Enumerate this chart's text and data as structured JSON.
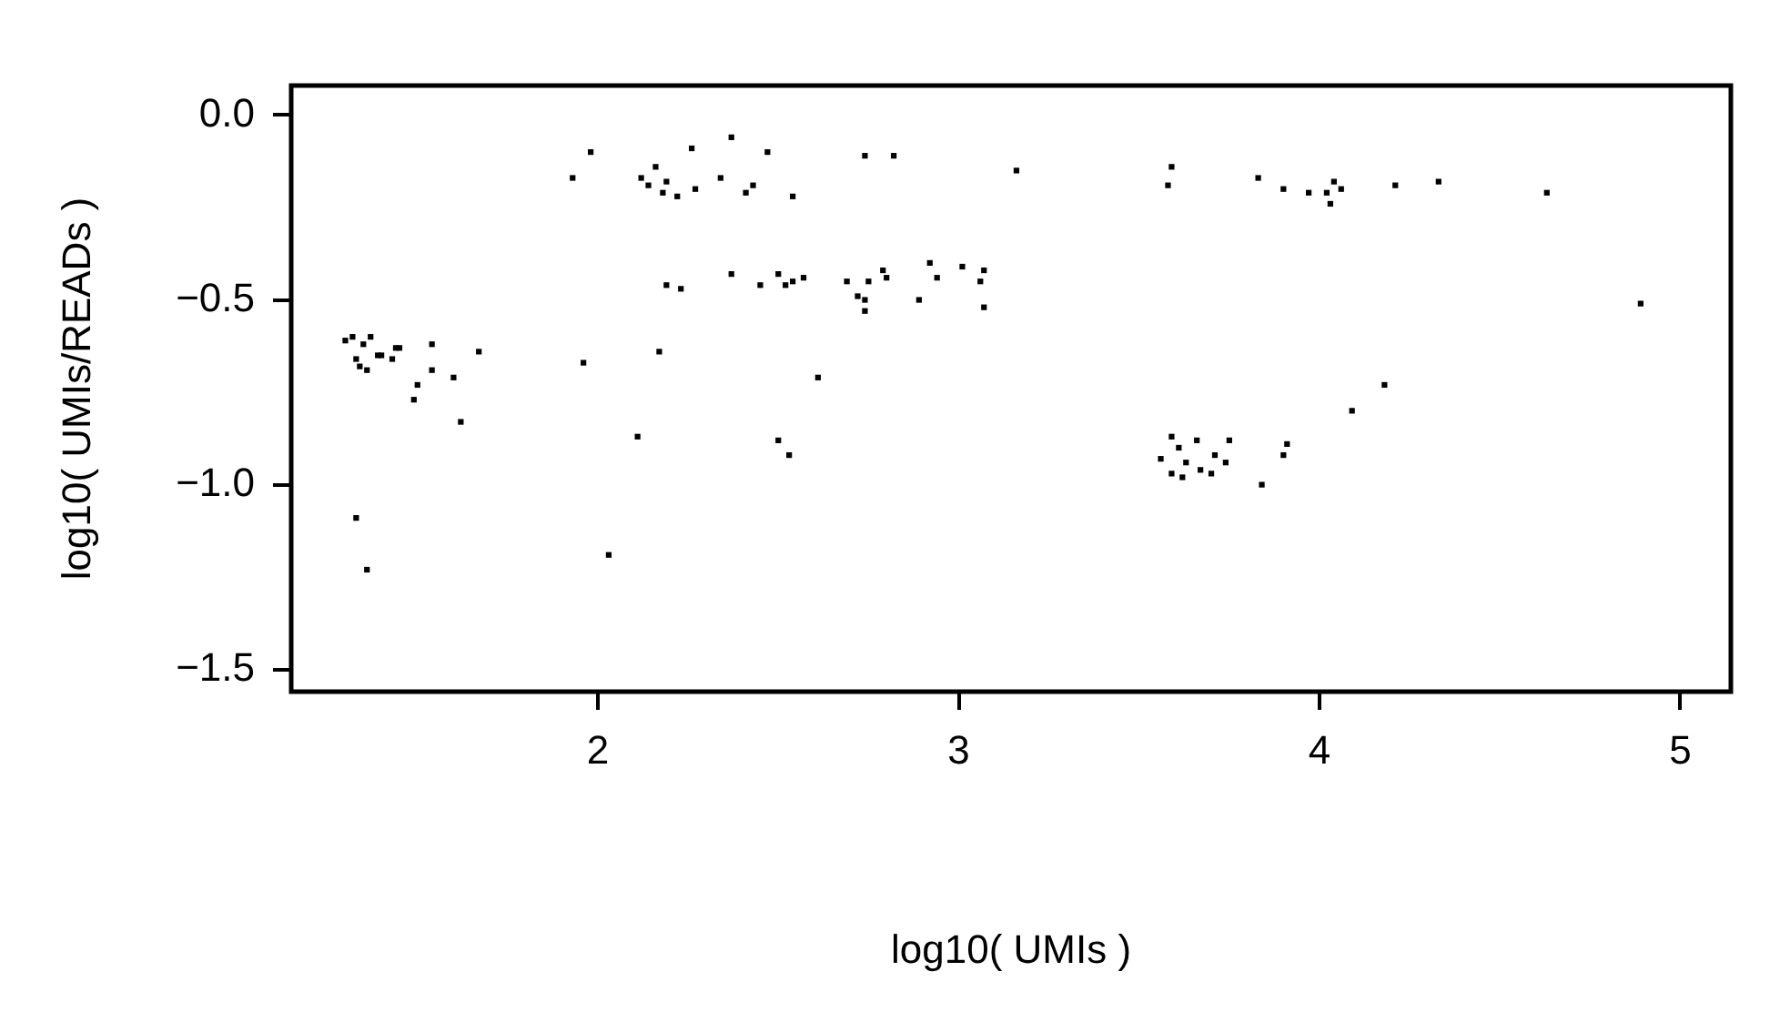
{
  "chart_data": {
    "type": "scatter",
    "xlabel": "log10( UMIs )",
    "ylabel": "log10( UMIs/READs )",
    "marker": "square",
    "grid": false,
    "legend": false,
    "xlim": [
      1.15,
      5.14
    ],
    "ylim": [
      -1.56,
      0.08
    ],
    "xticks": [
      2,
      3,
      4,
      5
    ],
    "yticks": [
      {
        "value": -1.5,
        "label": "−1.5"
      },
      {
        "value": -1,
        "label": "−1.0"
      },
      {
        "value": -0.5,
        "label": "−0.5"
      },
      {
        "value": 0,
        "label": "0.0"
      }
    ],
    "series": [
      {
        "color": "#000000",
        "x": [
          1.3,
          1.32,
          1.37,
          1.35,
          1.39,
          1.33,
          1.34,
          1.36,
          1.4,
          1.43,
          1.44,
          1.45,
          1.54,
          1.67,
          1.54,
          1.6,
          1.5,
          1.49,
          1.62,
          1.33,
          1.36,
          1.96,
          2.17,
          2.11,
          2.5,
          2.53,
          2.03,
          1.93,
          1.98,
          2.12,
          2.14,
          2.16,
          2.19,
          2.18,
          2.22,
          2.26,
          2.27,
          2.34,
          2.37,
          2.41,
          2.43,
          2.47,
          2.54,
          2.19,
          2.23,
          2.37,
          2.45,
          2.5,
          2.52,
          2.54,
          2.74,
          2.82,
          3.16,
          3.59,
          3.58,
          2.57,
          2.69,
          2.72,
          2.74,
          2.74,
          2.75,
          2.79,
          2.8,
          2.89,
          2.92,
          2.94,
          3.01,
          3.07,
          3.06,
          3.07,
          2.61,
          3.83,
          3.9,
          3.97,
          4.02,
          4.04,
          4.06,
          4.03,
          4.21,
          4.33,
          4.63,
          4.89,
          4.18,
          4.09,
          3.59,
          3.61,
          3.66,
          3.75,
          3.56,
          3.63,
          3.71,
          3.74,
          3.59,
          3.62,
          3.67,
          3.7,
          3.91,
          3.9,
          3.84
        ],
        "values": [
          -0.61,
          -0.6,
          -0.6,
          -0.62,
          -0.65,
          -0.66,
          -0.68,
          -0.69,
          -0.65,
          -0.66,
          -0.63,
          -0.63,
          -0.62,
          -0.64,
          -0.69,
          -0.71,
          -0.73,
          -0.77,
          -0.83,
          -1.09,
          -1.23,
          -0.67,
          -0.64,
          -0.87,
          -0.88,
          -0.92,
          -1.19,
          -0.17,
          -0.1,
          -0.17,
          -0.19,
          -0.14,
          -0.18,
          -0.21,
          -0.22,
          -0.09,
          -0.2,
          -0.17,
          -0.06,
          -0.21,
          -0.19,
          -0.1,
          -0.22,
          -0.46,
          -0.47,
          -0.43,
          -0.46,
          -0.43,
          -0.46,
          -0.45,
          -0.11,
          -0.11,
          -0.15,
          -0.14,
          -0.19,
          -0.44,
          -0.45,
          -0.49,
          -0.5,
          -0.53,
          -0.45,
          -0.42,
          -0.44,
          -0.5,
          -0.4,
          -0.44,
          -0.41,
          -0.42,
          -0.45,
          -0.52,
          -0.71,
          -0.17,
          -0.2,
          -0.21,
          -0.21,
          -0.18,
          -0.2,
          -0.24,
          -0.19,
          -0.18,
          -0.21,
          -0.51,
          -0.73,
          -0.8,
          -0.87,
          -0.9,
          -0.88,
          -0.88,
          -0.93,
          -0.94,
          -0.92,
          -0.94,
          -0.97,
          -0.98,
          -0.96,
          -0.97,
          -0.89,
          -0.92,
          -1.0
        ]
      }
    ]
  }
}
